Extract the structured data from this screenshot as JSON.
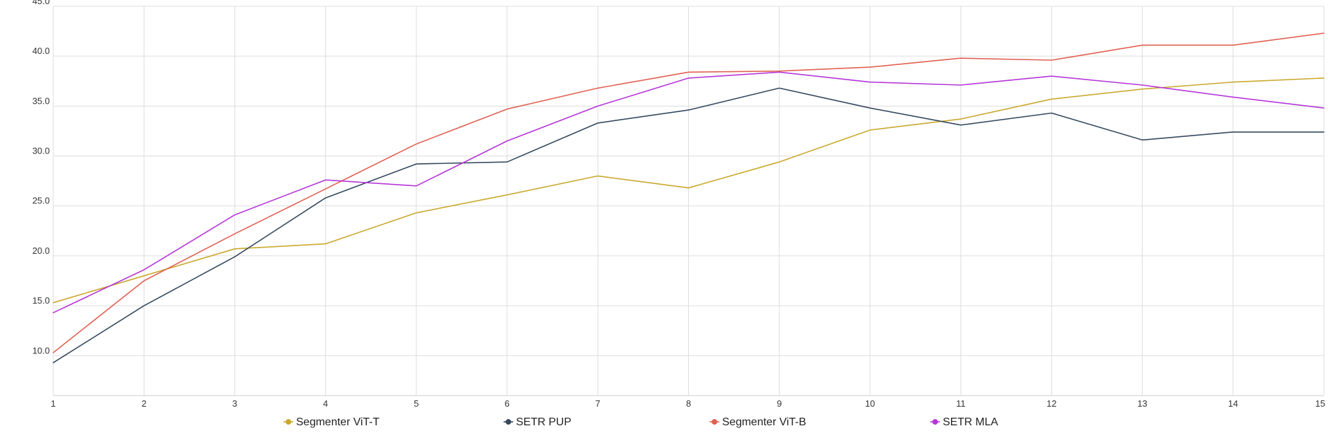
{
  "chart_data": {
    "type": "line",
    "title": "",
    "xlabel": "",
    "ylabel": "",
    "x": [
      1,
      2,
      3,
      4,
      5,
      6,
      7,
      8,
      9,
      10,
      11,
      12,
      13,
      14,
      15
    ],
    "x_tick_labels": [
      "1",
      "2",
      "3",
      "4",
      "5",
      "6",
      "7",
      "8",
      "9",
      "10",
      "11",
      "12",
      "13",
      "14",
      "15"
    ],
    "y_tick_labels": [
      "10.0",
      "15.0",
      "20.0",
      "25.0",
      "30.0",
      "35.0",
      "40.0",
      "45.0"
    ],
    "y_ticks": [
      10,
      15,
      20,
      25,
      30,
      35,
      40,
      45
    ],
    "ylim": [
      6,
      45
    ],
    "xlim": [
      1,
      15
    ],
    "grid": true,
    "legend_position": "bottom",
    "series": [
      {
        "name": "Segmenter ViT-T",
        "color": "#c9a82c",
        "values": [
          15.3,
          18.0,
          20.7,
          21.2,
          24.3,
          26.1,
          28.0,
          26.8,
          29.4,
          32.6,
          33.7,
          35.7,
          36.7,
          37.4,
          37.8
        ]
      },
      {
        "name": "SETR PUP",
        "color": "#34495e",
        "values": [
          9.3,
          15.0,
          19.9,
          25.8,
          29.2,
          29.4,
          33.3,
          34.6,
          36.8,
          34.8,
          33.1,
          34.3,
          31.6,
          32.4,
          32.4
        ]
      },
      {
        "name": "Segmenter ViT-B",
        "color": "#e06052",
        "values": [
          10.3,
          17.5,
          22.2,
          26.7,
          31.2,
          34.7,
          36.8,
          38.4,
          38.5,
          38.9,
          39.8,
          39.6,
          41.1,
          41.1,
          42.3
        ]
      },
      {
        "name": "SETR MLA",
        "color": "#b535d8",
        "values": [
          14.3,
          18.6,
          24.1,
          27.6,
          27.0,
          31.5,
          35.0,
          37.8,
          38.4,
          37.4,
          37.1,
          38.0,
          37.1,
          35.9,
          34.8
        ]
      }
    ]
  }
}
